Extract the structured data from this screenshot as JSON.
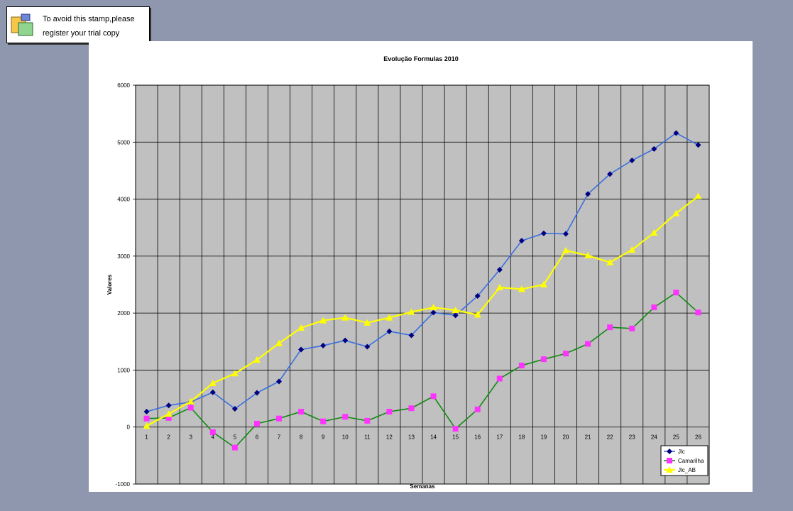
{
  "stamp": {
    "line1": "To avoid this stamp,please",
    "line2": "register your trial copy"
  },
  "colors": {
    "background": "#8e97ad",
    "plot_bg": "#c0c0c0",
    "Jlc_line": "#3a6fe0",
    "Jlc_marker": "#000080",
    "Camarilha_line": "#118a11",
    "Camarilha_marker": "#ff33ff",
    "Jlc_AB": "#ffff00"
  },
  "chart_data": {
    "type": "line",
    "title": "Evolução Formulas 2010",
    "xlabel": "Semanas",
    "ylabel": "Valores",
    "ylim": [
      -1000,
      6000
    ],
    "yticks": [
      "6000",
      "5000",
      "4000",
      "3000",
      "2000",
      "1000",
      "0",
      "-1000"
    ],
    "categories": [
      "1",
      "2",
      "3",
      "4",
      "5",
      "6",
      "7",
      "8",
      "9",
      "10",
      "11",
      "12",
      "13",
      "14",
      "15",
      "16",
      "17",
      "18",
      "19",
      "20",
      "21",
      "22",
      "23",
      "24",
      "25",
      "26"
    ],
    "grid": true,
    "legend_position": "bottom-right",
    "series": [
      {
        "name": "Jlc",
        "marker": "diamond",
        "values": [
          270,
          380,
          440,
          610,
          320,
          600,
          800,
          1360,
          1430,
          1520,
          1410,
          1680,
          1610,
          2010,
          1960,
          2300,
          2760,
          3270,
          3400,
          3390,
          4090,
          4440,
          4680,
          4880,
          5160,
          4950
        ]
      },
      {
        "name": "Camarilha",
        "marker": "square",
        "values": [
          150,
          160,
          340,
          -90,
          -360,
          60,
          150,
          270,
          100,
          180,
          110,
          270,
          330,
          540,
          -30,
          310,
          850,
          1080,
          1190,
          1290,
          1460,
          1750,
          1730,
          2100,
          2360,
          2010
        ]
      },
      {
        "name": "Jlc_AB",
        "marker": "triangle",
        "values": [
          20,
          230,
          450,
          770,
          940,
          1180,
          1470,
          1740,
          1870,
          1920,
          1830,
          1920,
          2020,
          2100,
          2050,
          1970,
          2450,
          2420,
          2500,
          3100,
          3010,
          2890,
          3110,
          3410,
          3750,
          4050
        ]
      }
    ]
  }
}
